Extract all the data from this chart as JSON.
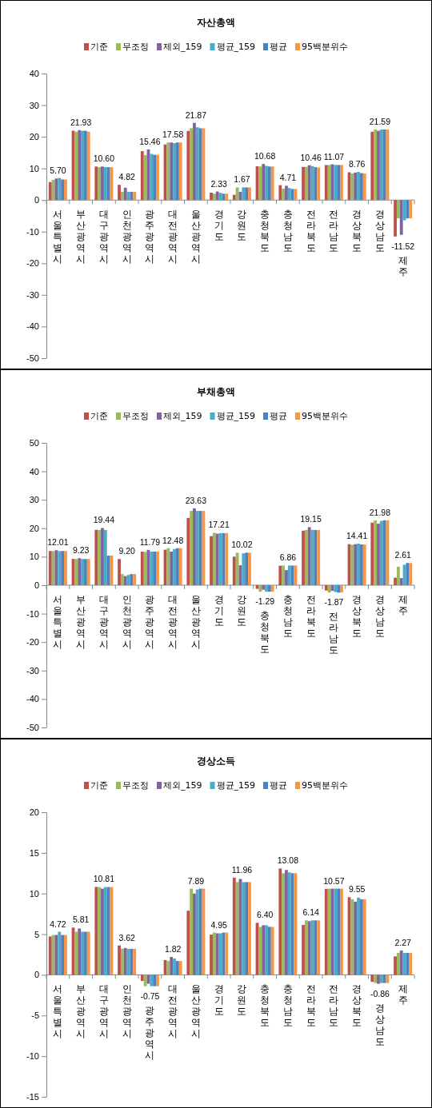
{
  "chart_data": [
    {
      "type": "bar",
      "title": "자산총액",
      "legend": "top",
      "grid": false,
      "ylim": [
        -50,
        40
      ],
      "yticks": [
        -50,
        -40,
        -30,
        -20,
        -10,
        0,
        10,
        20,
        30,
        40
      ],
      "categories": [
        "서울특별시",
        "부산광역시",
        "대구광역시",
        "인천광역시",
        "광주광역시",
        "대전광역시",
        "울산광역시",
        "경기도",
        "강원도",
        "충청북도",
        "충청남도",
        "전라북도",
        "전라남도",
        "경상북도",
        "경상남도",
        "제주"
      ],
      "series": [
        {
          "name": "기준",
          "color": "#c0504d",
          "values": [
            5.7,
            21.93,
            10.6,
            4.82,
            15.46,
            17.58,
            21.87,
            2.33,
            1.67,
            10.68,
            4.71,
            10.46,
            11.07,
            8.76,
            21.59,
            -11.52
          ],
          "value_labels": [
            "5.70",
            "21.93",
            "10.60",
            "4.82",
            "15.46",
            "17.58",
            "21.87",
            "2.33",
            "1.67",
            "10.68",
            "4.71",
            "10.46",
            "11.07",
            "8.76",
            "21.59",
            "-11.52"
          ]
        },
        {
          "name": "무조정",
          "color": "#9bbb59",
          "values": [
            6.4,
            21.6,
            10.4,
            2.6,
            14.2,
            18.2,
            22.7,
            2.0,
            4.0,
            10.6,
            3.6,
            10.5,
            11.1,
            8.4,
            22.3,
            -5.8
          ]
        },
        {
          "name": "제외_159",
          "color": "#8064a2",
          "values": [
            6.8,
            22.1,
            10.6,
            3.9,
            16.0,
            18.2,
            24.4,
            2.7,
            2.6,
            11.4,
            4.5,
            11.0,
            11.3,
            8.7,
            21.9,
            -11.0
          ]
        },
        {
          "name": "평균_159",
          "color": "#4bacc6",
          "values": [
            7.0,
            21.9,
            10.4,
            2.6,
            14.6,
            18.0,
            23.0,
            2.3,
            4.0,
            10.8,
            3.8,
            10.7,
            11.1,
            8.9,
            22.3,
            -6.4
          ]
        },
        {
          "name": "평균",
          "color": "#4f81bd",
          "values": [
            6.5,
            21.9,
            10.4,
            2.6,
            14.3,
            18.2,
            22.7,
            2.0,
            4.0,
            10.6,
            3.5,
            10.4,
            11.1,
            8.5,
            22.3,
            -5.8
          ]
        },
        {
          "name": "95백분위수",
          "color": "#f79646",
          "values": [
            6.5,
            21.6,
            10.4,
            2.6,
            14.3,
            18.2,
            22.7,
            2.0,
            4.0,
            10.6,
            3.5,
            10.3,
            11.1,
            8.4,
            22.3,
            -5.8
          ]
        }
      ]
    },
    {
      "type": "bar",
      "title": "부채총액",
      "legend": "top",
      "grid": false,
      "ylim": [
        -50,
        50
      ],
      "yticks": [
        -50,
        -40,
        -30,
        -20,
        -10,
        0,
        10,
        20,
        30,
        40,
        50
      ],
      "categories": [
        "서울특별시",
        "부산광역시",
        "대구광역시",
        "인천광역시",
        "광주광역시",
        "대전광역시",
        "울산광역시",
        "경기도",
        "강원도",
        "충청북도",
        "충청남도",
        "전라북도",
        "전라남도",
        "경상북도",
        "경상남도",
        "제주"
      ],
      "series": [
        {
          "name": "기준",
          "color": "#c0504d",
          "values": [
            12.01,
            9.23,
            19.44,
            9.2,
            11.79,
            12.48,
            23.63,
            17.21,
            10.02,
            -1.29,
            6.86,
            19.15,
            -1.87,
            14.41,
            21.98,
            2.61
          ],
          "value_labels": [
            "12.01",
            "9.23",
            "19.44",
            "9.20",
            "11.79",
            "12.48",
            "23.63",
            "17.21",
            "10.02",
            "-1.29",
            "6.86",
            "19.15",
            "-1.87",
            "14.41",
            "21.98",
            "2.61"
          ]
        },
        {
          "name": "무조정",
          "color": "#9bbb59",
          "values": [
            12.0,
            9.2,
            19.4,
            3.9,
            11.7,
            13.0,
            26.1,
            18.4,
            11.4,
            -2.3,
            6.9,
            19.4,
            -2.6,
            14.2,
            22.8,
            6.5
          ]
        },
        {
          "name": "제외_159",
          "color": "#8064a2",
          "values": [
            12.3,
            9.5,
            20.1,
            3.2,
            12.4,
            11.8,
            27.0,
            18.1,
            7.0,
            -1.6,
            5.3,
            20.4,
            -2.0,
            14.4,
            21.6,
            2.5
          ]
        },
        {
          "name": "평균_159",
          "color": "#4bacc6",
          "values": [
            12.0,
            9.2,
            19.4,
            3.6,
            11.8,
            12.7,
            26.1,
            18.3,
            11.2,
            -2.3,
            6.9,
            19.4,
            -2.4,
            14.6,
            22.6,
            7.2
          ]
        },
        {
          "name": "평균",
          "color": "#4f81bd",
          "values": [
            12.0,
            9.2,
            10.4,
            3.9,
            11.8,
            13.0,
            26.1,
            18.3,
            11.4,
            -2.3,
            6.9,
            19.4,
            -2.6,
            14.3,
            22.8,
            7.8
          ]
        },
        {
          "name": "95백분위수",
          "color": "#f79646",
          "values": [
            12.0,
            9.2,
            10.4,
            3.9,
            11.8,
            13.0,
            26.1,
            18.3,
            11.4,
            -2.3,
            6.9,
            19.4,
            -2.6,
            14.3,
            22.8,
            7.8
          ]
        }
      ]
    },
    {
      "type": "bar",
      "title": "경상소득",
      "legend": "top",
      "grid": false,
      "ylim": [
        -15,
        20
      ],
      "yticks": [
        -15,
        -10,
        -5,
        0,
        5,
        10,
        15,
        20
      ],
      "categories": [
        "서울특별시",
        "부산광역시",
        "대구광역시",
        "인천광역시",
        "광주광역시",
        "대전광역시",
        "울산광역시",
        "경기도",
        "강원도",
        "충청북도",
        "충청남도",
        "전라북도",
        "전라남도",
        "경상북도",
        "경상남도",
        "제주"
      ],
      "series": [
        {
          "name": "기준",
          "color": "#c0504d",
          "values": [
            4.72,
            5.81,
            10.81,
            3.62,
            -0.75,
            1.82,
            7.89,
            4.95,
            11.96,
            6.4,
            13.08,
            6.14,
            10.57,
            9.55,
            -0.86,
            2.27
          ],
          "value_labels": [
            "4.72",
            "5.81",
            "10.81",
            "3.62",
            "-0.75",
            "1.82",
            "7.89",
            "4.95",
            "11.96",
            "6.40",
            "13.08",
            "6.14",
            "10.57",
            "9.55",
            "-0.86",
            "2.27"
          ]
        },
        {
          "name": "무조정",
          "color": "#9bbb59",
          "values": [
            4.9,
            5.3,
            10.8,
            3.2,
            -1.4,
            1.7,
            10.6,
            5.2,
            11.4,
            5.9,
            12.5,
            6.7,
            10.6,
            9.3,
            -1.0,
            2.7
          ]
        },
        {
          "name": "제외_159",
          "color": "#8064a2",
          "values": [
            4.9,
            5.7,
            10.6,
            3.3,
            -1.1,
            2.2,
            10.0,
            5.1,
            11.8,
            6.1,
            12.9,
            6.6,
            10.6,
            9.0,
            -1.1,
            3.0
          ]
        },
        {
          "name": "평균_159",
          "color": "#4bacc6",
          "values": [
            5.3,
            5.3,
            10.8,
            3.2,
            -1.4,
            2.0,
            10.5,
            5.1,
            11.4,
            6.1,
            12.6,
            6.7,
            10.6,
            9.5,
            -1.0,
            2.7
          ]
        },
        {
          "name": "평균",
          "color": "#4f81bd",
          "values": [
            4.9,
            5.3,
            10.8,
            3.2,
            -1.4,
            1.7,
            10.6,
            5.2,
            11.4,
            5.9,
            12.5,
            6.7,
            10.6,
            9.3,
            -1.0,
            2.7
          ]
        },
        {
          "name": "95백분위수",
          "color": "#f79646",
          "values": [
            4.9,
            5.3,
            10.8,
            3.2,
            -1.4,
            1.7,
            10.6,
            5.2,
            11.4,
            5.9,
            12.5,
            6.7,
            10.6,
            9.3,
            -1.0,
            2.7
          ]
        }
      ]
    }
  ]
}
